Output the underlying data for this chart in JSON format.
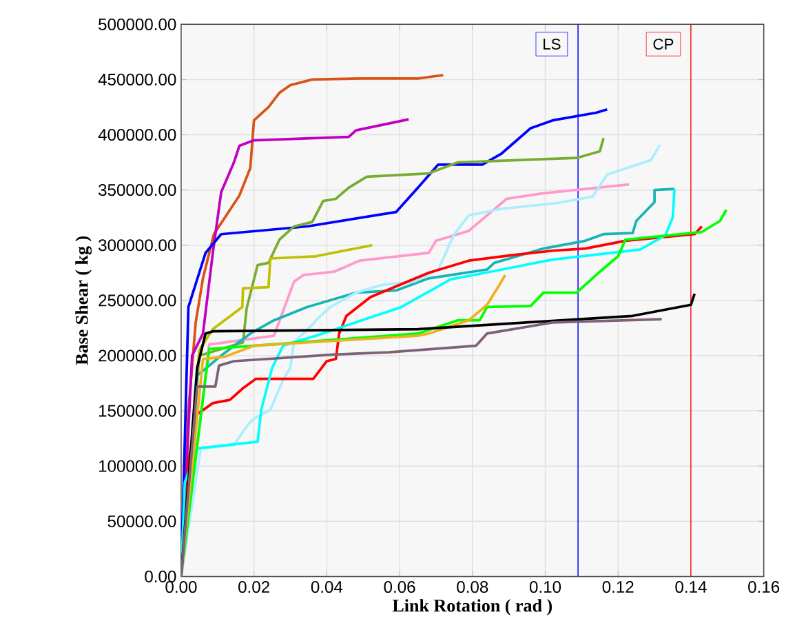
{
  "chart_data": {
    "type": "line",
    "xlabel": "Link Rotation ( rad )",
    "ylabel": "Base Shear ( kg )",
    "xlim": [
      0,
      0.16
    ],
    "ylim": [
      0,
      500000
    ],
    "xticks": [
      {
        "value": 0,
        "label": "0.00"
      },
      {
        "value": 0.02,
        "label": "0.02"
      },
      {
        "value": 0.04,
        "label": "0.04"
      },
      {
        "value": 0.06,
        "label": "0.06"
      },
      {
        "value": 0.08,
        "label": "0.08"
      },
      {
        "value": 0.1,
        "label": "0.10"
      },
      {
        "value": 0.12,
        "label": "0.12"
      },
      {
        "value": 0.14,
        "label": "0.14"
      },
      {
        "value": 0.16,
        "label": "0.16"
      }
    ],
    "yticks": [
      {
        "value": 0,
        "label": "0.00"
      },
      {
        "value": 50000,
        "label": "50000.00"
      },
      {
        "value": 100000,
        "label": "100000.00"
      },
      {
        "value": 150000,
        "label": "150000.00"
      },
      {
        "value": 200000,
        "label": "200000.00"
      },
      {
        "value": 250000,
        "label": "250000.00"
      },
      {
        "value": 300000,
        "label": "300000.00"
      },
      {
        "value": 350000,
        "label": "350000.00"
      },
      {
        "value": 400000,
        "label": "400000.00"
      },
      {
        "value": 450000,
        "label": "450000.00"
      },
      {
        "value": 500000,
        "label": "500000.00"
      }
    ],
    "grid": true,
    "ref_lines": [
      {
        "axis": "x",
        "value": 0.109,
        "label": "LS",
        "color": "#0000ff"
      },
      {
        "axis": "x",
        "value": 0.14,
        "label": "CP",
        "color": "#ff0000"
      }
    ],
    "series": [
      {
        "color": "#d95319",
        "x": [
          0,
          0.002,
          0.004,
          0.006,
          0.009,
          0.012,
          0.016,
          0.019,
          0.02,
          0.024,
          0.027,
          0.03,
          0.036,
          0.05,
          0.065,
          0.072
        ],
        "values": [
          0,
          150000,
          230000,
          270000,
          310000,
          325000,
          345000,
          370000,
          413000,
          425000,
          438000,
          445000,
          450000,
          451000,
          451000,
          454000
        ]
      },
      {
        "color": "#c000c0",
        "x": [
          0,
          0.003,
          0.006,
          0.0087,
          0.011,
          0.0145,
          0.016,
          0.02,
          0.046,
          0.048,
          0.0625
        ],
        "values": [
          0,
          200000,
          220000,
          293000,
          348000,
          375000,
          390000,
          395000,
          398000,
          404000,
          414000
        ]
      },
      {
        "color": "#0000ff",
        "x": [
          0,
          0.002,
          0.0067,
          0.011,
          0.0346,
          0.059,
          0.065,
          0.0706,
          0.0827,
          0.088,
          0.096,
          0.102,
          0.114,
          0.117
        ],
        "values": [
          0,
          244000,
          293000,
          310000,
          317000,
          330000,
          352000,
          373000,
          373000,
          383000,
          406000,
          413000,
          420000,
          423000
        ]
      },
      {
        "color": "#77ac30",
        "x": [
          0,
          0.005,
          0.017,
          0.018,
          0.021,
          0.024,
          0.027,
          0.031,
          0.036,
          0.039,
          0.0425,
          0.046,
          0.051,
          0.068,
          0.076,
          0.1086,
          0.115,
          0.116
        ],
        "values": [
          0,
          200000,
          212000,
          243000,
          282000,
          284000,
          305000,
          317000,
          321000,
          340000,
          342000,
          352000,
          362000,
          365000,
          375000,
          379000,
          385000,
          397000
        ]
      },
      {
        "color": "#bfbf00",
        "x": [
          0,
          0.005,
          0.0087,
          0.0168,
          0.017,
          0.024,
          0.0245,
          0.037,
          0.0525
        ],
        "values": [
          0,
          205000,
          224000,
          244000,
          261000,
          262000,
          288000,
          290000,
          300000
        ]
      },
      {
        "color": "#ff99cc",
        "x": [
          0,
          0.0077,
          0.0255,
          0.031,
          0.0336,
          0.042,
          0.049,
          0.065,
          0.068,
          0.07,
          0.079,
          0.0894,
          0.0995,
          0.123
        ],
        "values": [
          0,
          210000,
          218000,
          267000,
          273000,
          276000,
          286000,
          292000,
          293000,
          304000,
          313000,
          342000,
          347000,
          355000
        ]
      },
      {
        "color": "#17b4b4",
        "x": [
          0,
          0.0044,
          0.011,
          0.019,
          0.0255,
          0.0346,
          0.048,
          0.059,
          0.068,
          0.084,
          0.086,
          0.0995,
          0.111,
          0.116,
          0.124,
          0.125,
          0.13,
          0.13,
          0.1355
        ],
        "values": [
          0,
          182000,
          200000,
          220000,
          232000,
          244000,
          257000,
          259000,
          270000,
          278000,
          284000,
          297000,
          304000,
          310000,
          311000,
          322000,
          339000,
          350000,
          351000
        ]
      },
      {
        "color": "#aaeeff",
        "x": [
          0,
          0.0054,
          0.0145,
          0.018,
          0.02,
          0.0245,
          0.028,
          0.03,
          0.031,
          0.036,
          0.037,
          0.041,
          0.048,
          0.055,
          0.064,
          0.0706,
          0.075,
          0.079,
          0.088,
          0.103,
          0.113,
          0.117,
          0.129,
          0.1315
        ],
        "values": [
          0,
          116000,
          119000,
          136000,
          143000,
          151000,
          178000,
          189000,
          212000,
          228000,
          232000,
          244000,
          257000,
          264000,
          267000,
          278000,
          310000,
          327000,
          333000,
          338000,
          344000,
          364000,
          377000,
          391000
        ]
      },
      {
        "color": "#ff0000",
        "x": [
          0,
          0.002,
          0.0044,
          0.0087,
          0.0134,
          0.0168,
          0.0205,
          0.0363,
          0.04,
          0.0425,
          0.0434,
          0.0454,
          0.052,
          0.068,
          0.079,
          0.091,
          0.102,
          0.111,
          0.122,
          0.141,
          0.143
        ],
        "values": [
          0,
          104000,
          147000,
          157000,
          160000,
          170000,
          179000,
          179000,
          195000,
          197000,
          220000,
          236000,
          253000,
          275000,
          286000,
          291000,
          295000,
          297000,
          304000,
          310000,
          317000
        ]
      },
      {
        "color": "#00ffff",
        "x": [
          0,
          0.001,
          0.0044,
          0.021,
          0.022,
          0.025,
          0.028,
          0.037,
          0.0605,
          0.074,
          0.085,
          0.102,
          0.126,
          0.133,
          0.135,
          0.1355
        ],
        "values": [
          0,
          85000,
          116000,
          122000,
          151000,
          189000,
          209000,
          218000,
          244000,
          269000,
          276000,
          287000,
          296000,
          309000,
          325000,
          351000
        ]
      },
      {
        "color": "#00ff00",
        "x": [
          0,
          0.0077,
          0.065,
          0.076,
          0.082,
          0.084,
          0.096,
          0.0995,
          0.1086,
          0.115,
          0.12,
          0.122,
          0.143,
          0.148,
          0.1497
        ],
        "values": [
          0,
          206000,
          220000,
          232000,
          232000,
          244000,
          245000,
          257000,
          257000,
          276000,
          290000,
          305000,
          312000,
          322000,
          332000
        ]
      },
      {
        "color": "#edb120",
        "x": [
          0,
          0.006,
          0.012,
          0.02,
          0.065,
          0.068,
          0.079,
          0.084,
          0.0874,
          0.089
        ],
        "values": [
          0,
          197000,
          199000,
          209000,
          218000,
          220000,
          232000,
          246000,
          264000,
          273000
        ]
      },
      {
        "color": "#000000",
        "x": [
          0,
          0.0044,
          0.0067,
          0.0087,
          0.065,
          0.0995,
          0.124,
          0.14,
          0.141
        ],
        "values": [
          0,
          189000,
          220000,
          222000,
          224000,
          231000,
          236000,
          246000,
          256000
        ]
      },
      {
        "color": "#7e6178",
        "x": [
          0,
          0.0044,
          0.0094,
          0.0104,
          0.0145,
          0.042,
          0.057,
          0.081,
          0.084,
          0.102,
          0.132
        ],
        "values": [
          0,
          172000,
          172000,
          191000,
          195000,
          201000,
          203000,
          209000,
          220000,
          230000,
          233000
        ]
      }
    ]
  }
}
